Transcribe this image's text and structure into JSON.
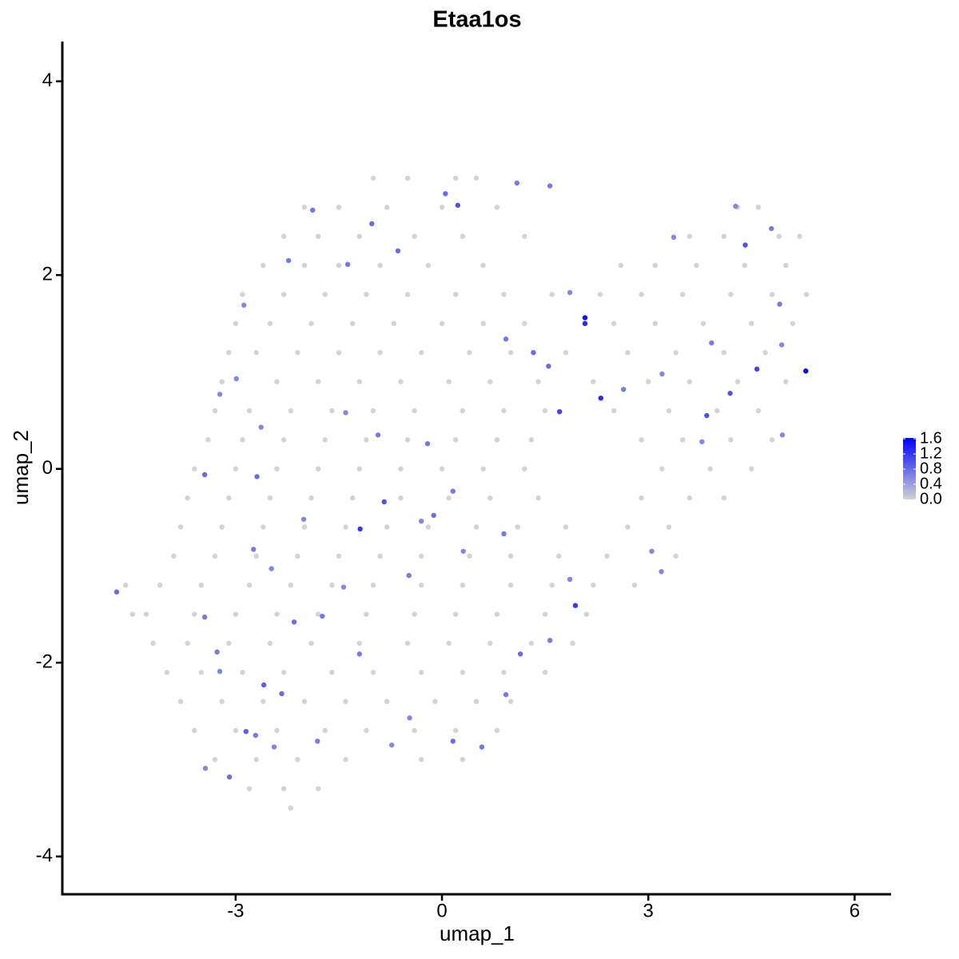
{
  "chart_data": {
    "type": "scatter",
    "title": "Etaa1os",
    "xlabel": "umap_1",
    "ylabel": "umap_2",
    "x": [
      -1.0,
      -0.5,
      0.2,
      0.5,
      -2.0,
      -1.5,
      -0.8,
      0.0,
      0.8,
      4.3,
      4.6,
      -2.3,
      -1.8,
      -1.2,
      -0.4,
      0.3,
      1.2,
      3.6,
      4.1,
      4.9,
      5.2,
      -2.6,
      -2.0,
      -1.5,
      -0.9,
      -0.2,
      0.6,
      2.6,
      3.1,
      3.7,
      4.4,
      5.0,
      -2.9,
      -2.3,
      -1.7,
      -1.1,
      -0.5,
      0.2,
      0.9,
      1.6,
      2.3,
      2.9,
      3.5,
      4.2,
      4.8,
      5.3,
      -3.0,
      -2.5,
      -1.9,
      -1.3,
      -0.7,
      0.0,
      0.6,
      1.2,
      2.5,
      3.1,
      3.8,
      4.5,
      5.1,
      -3.1,
      -2.7,
      -2.1,
      -1.5,
      -0.9,
      -0.3,
      0.4,
      1.0,
      1.8,
      2.7,
      3.4,
      4.1,
      4.7,
      -3.2,
      -2.4,
      -1.8,
      -1.2,
      -0.6,
      0.1,
      0.7,
      1.4,
      2.2,
      3.0,
      3.6,
      4.3,
      5.0,
      -3.3,
      -2.8,
      -2.2,
      -1.6,
      -1.0,
      -0.4,
      0.3,
      0.9,
      1.5,
      2.5,
      3.3,
      4.0,
      4.6,
      -3.4,
      -2.9,
      -2.3,
      -1.7,
      -1.1,
      -0.5,
      0.2,
      0.8,
      1.3,
      2.9,
      3.5,
      4.2,
      4.8,
      -3.6,
      -3.0,
      -2.4,
      -1.8,
      -1.2,
      -0.6,
      0.0,
      0.6,
      1.2,
      3.2,
      3.9,
      4.5,
      -3.7,
      -3.1,
      -2.5,
      -1.9,
      -1.3,
      -0.6,
      0.1,
      0.7,
      1.4,
      2.9,
      3.6,
      4.1,
      -3.8,
      -3.2,
      -2.6,
      -2.0,
      -1.4,
      -0.8,
      -0.2,
      0.5,
      1.1,
      1.8,
      2.7,
      3.3,
      -3.9,
      -3.3,
      -2.7,
      -2.1,
      -1.5,
      -0.9,
      -0.3,
      0.4,
      1.0,
      1.7,
      2.4,
      3.4,
      -4.1,
      -3.5,
      -2.8,
      -2.2,
      -1.6,
      -1.0,
      -0.3,
      0.3,
      1.0,
      1.6,
      2.2,
      2.8,
      -4.3,
      -3.6,
      -3.0,
      -2.4,
      -1.8,
      -1.1,
      -0.4,
      0.2,
      0.8,
      1.5,
      2.1,
      -4.2,
      -3.7,
      -3.1,
      -2.5,
      -1.9,
      -1.2,
      -0.5,
      0.1,
      0.7,
      1.3,
      1.9,
      -4.0,
      -3.5,
      -2.9,
      -2.3,
      -1.6,
      -1.0,
      -0.3,
      0.3,
      0.9,
      1.5,
      -3.8,
      -3.2,
      -2.6,
      -2.0,
      -1.4,
      -0.8,
      -0.1,
      0.5,
      1.0,
      -3.6,
      -3.0,
      -2.4,
      -1.7,
      -1.1,
      -0.4,
      0.2,
      0.8,
      -3.3,
      -2.7,
      -2.1,
      -1.4,
      -0.3,
      0.3,
      -2.8,
      -2.3,
      -1.8,
      -4.6,
      -4.5,
      -2.2,
      5.29,
      2.08,
      2.08,
      2.31,
      1.94,
      -1.19,
      -0.84,
      1.71,
      4.58,
      4.19,
      3.85,
      4.41,
      0.23,
      0.05,
      -0.64,
      -1.02,
      -4.73,
      -3.45,
      -2.69,
      -2.85,
      -3.09,
      0.16,
      0.58,
      1.14,
      1.57,
      0.93,
      -2.59,
      -2.33,
      -2.15,
      -1.74,
      -1.43,
      -0.48,
      -0.21,
      0.16,
      0.9,
      -0.12,
      1.55,
      1.33,
      0.93,
      2.64,
      3.2,
      3.92,
      4.91,
      4.79,
      3.37,
      1.86,
      1.09,
      1.57,
      -1.88,
      -2.23,
      -1.37,
      -2.88,
      -3.23,
      -2.99,
      -2.63,
      -1.4,
      -0.93,
      -2.01,
      -2.74,
      -2.48,
      -3.45,
      -3.27,
      -3.23,
      -2.71,
      -2.44,
      -3.44,
      -1.81,
      -0.73,
      -0.47,
      -1.2,
      -0.3,
      0.31,
      1.86,
      3.05,
      3.19,
      3.78,
      4.95,
      4.94,
      4.27
    ],
    "y": [
      3.0,
      3.0,
      3.0,
      3.0,
      2.7,
      2.7,
      2.7,
      2.7,
      2.7,
      2.7,
      2.7,
      2.4,
      2.4,
      2.4,
      2.4,
      2.4,
      2.4,
      2.4,
      2.4,
      2.4,
      2.4,
      2.1,
      2.1,
      2.1,
      2.1,
      2.1,
      2.1,
      2.1,
      2.1,
      2.1,
      2.1,
      2.1,
      1.8,
      1.8,
      1.8,
      1.8,
      1.8,
      1.8,
      1.8,
      1.8,
      1.8,
      1.8,
      1.8,
      1.8,
      1.8,
      1.8,
      1.5,
      1.5,
      1.5,
      1.5,
      1.5,
      1.5,
      1.5,
      1.5,
      1.5,
      1.5,
      1.5,
      1.5,
      1.5,
      1.2,
      1.2,
      1.2,
      1.2,
      1.2,
      1.2,
      1.2,
      1.2,
      1.2,
      1.2,
      1.2,
      1.2,
      1.2,
      0.9,
      0.9,
      0.9,
      0.9,
      0.9,
      0.9,
      0.9,
      0.9,
      0.9,
      0.9,
      0.9,
      0.9,
      0.9,
      0.6,
      0.6,
      0.6,
      0.6,
      0.6,
      0.6,
      0.6,
      0.6,
      0.6,
      0.6,
      0.6,
      0.6,
      0.6,
      0.3,
      0.3,
      0.3,
      0.3,
      0.3,
      0.3,
      0.3,
      0.3,
      0.3,
      0.3,
      0.3,
      0.3,
      0.3,
      0.0,
      0.0,
      0.0,
      0.0,
      0.0,
      0.0,
      0.0,
      0.0,
      0.0,
      0.0,
      0.0,
      0.0,
      -0.3,
      -0.3,
      -0.3,
      -0.3,
      -0.3,
      -0.3,
      -0.3,
      -0.3,
      -0.3,
      -0.3,
      -0.3,
      -0.3,
      -0.6,
      -0.6,
      -0.6,
      -0.6,
      -0.6,
      -0.6,
      -0.6,
      -0.6,
      -0.6,
      -0.6,
      -0.6,
      -0.6,
      -0.9,
      -0.9,
      -0.9,
      -0.9,
      -0.9,
      -0.9,
      -0.9,
      -0.9,
      -0.9,
      -0.9,
      -0.9,
      -0.9,
      -1.2,
      -1.2,
      -1.2,
      -1.2,
      -1.2,
      -1.2,
      -1.2,
      -1.2,
      -1.2,
      -1.2,
      -1.2,
      -1.2,
      -1.5,
      -1.5,
      -1.5,
      -1.5,
      -1.5,
      -1.5,
      -1.5,
      -1.5,
      -1.5,
      -1.5,
      -1.5,
      -1.8,
      -1.8,
      -1.8,
      -1.8,
      -1.8,
      -1.8,
      -1.8,
      -1.8,
      -1.8,
      -1.8,
      -1.8,
      -2.1,
      -2.1,
      -2.1,
      -2.1,
      -2.1,
      -2.1,
      -2.1,
      -2.1,
      -2.1,
      -2.1,
      -2.4,
      -2.4,
      -2.4,
      -2.4,
      -2.4,
      -2.4,
      -2.4,
      -2.4,
      -2.4,
      -2.7,
      -2.7,
      -2.7,
      -2.7,
      -2.7,
      -2.7,
      -2.7,
      -2.7,
      -3.0,
      -3.0,
      -3.0,
      -3.0,
      -3.0,
      -3.0,
      -3.3,
      -3.3,
      -3.3,
      -1.2,
      -1.5,
      -3.5,
      1.01,
      1.56,
      1.5,
      0.73,
      -1.41,
      -0.62,
      -0.34,
      0.59,
      1.03,
      0.78,
      0.55,
      2.31,
      2.72,
      2.84,
      2.25,
      2.53,
      -1.27,
      -0.06,
      -0.08,
      -2.71,
      -3.18,
      -2.81,
      -2.87,
      -1.91,
      -1.77,
      -2.33,
      -2.23,
      -2.32,
      -1.58,
      -1.52,
      -1.22,
      -1.1,
      0.26,
      -0.23,
      -0.67,
      -0.48,
      1.06,
      1.2,
      1.34,
      0.82,
      0.98,
      1.3,
      1.7,
      2.48,
      2.39,
      1.82,
      2.95,
      2.92,
      2.67,
      2.15,
      2.11,
      1.69,
      0.77,
      0.93,
      0.43,
      0.58,
      0.35,
      -0.52,
      -0.83,
      -1.03,
      -1.53,
      -1.89,
      -2.09,
      -2.75,
      -2.87,
      -3.09,
      -2.81,
      -2.85,
      -2.57,
      -1.91,
      -0.54,
      -0.85,
      -1.14,
      -0.85,
      -1.06,
      0.28,
      0.35,
      1.28,
      2.71
    ],
    "values": [
      0,
      0,
      0,
      0,
      0,
      0,
      0,
      0,
      0,
      0,
      0,
      0,
      0,
      0,
      0,
      0,
      0,
      0,
      0,
      0,
      0,
      0,
      0,
      0,
      0,
      0,
      0,
      0,
      0,
      0,
      0,
      0,
      0,
      0,
      0,
      0,
      0,
      0,
      0,
      0,
      0,
      0,
      0,
      0,
      0,
      0,
      0,
      0,
      0,
      0,
      0,
      0,
      0,
      0,
      0,
      0,
      0,
      0,
      0,
      0,
      0,
      0,
      0,
      0,
      0,
      0,
      0,
      0,
      0,
      0,
      0,
      0,
      0,
      0,
      0,
      0,
      0,
      0,
      0,
      0,
      0,
      0,
      0,
      0,
      0,
      0,
      0,
      0,
      0,
      0,
      0,
      0,
      0,
      0,
      0,
      0,
      0,
      0,
      0,
      0,
      0,
      0,
      0,
      0,
      0,
      0,
      0,
      0,
      0,
      0,
      0,
      0,
      0,
      0,
      0,
      0,
      0,
      0,
      0,
      0,
      0,
      0,
      0,
      0,
      0,
      0,
      0,
      0,
      0,
      0,
      0,
      0,
      0,
      0,
      0,
      0,
      0,
      0,
      0,
      0,
      0,
      0,
      0,
      0,
      0,
      0,
      0,
      0,
      0,
      0,
      0,
      0,
      0,
      0,
      0,
      0,
      0,
      0,
      0,
      0,
      0,
      0,
      0,
      0,
      0,
      0,
      0,
      0,
      0,
      0,
      0,
      0,
      0,
      0,
      0,
      0,
      0,
      0,
      0,
      0,
      0,
      0,
      0,
      0,
      0,
      0,
      0,
      0,
      0,
      0,
      0,
      0,
      0,
      0,
      0,
      0,
      0,
      0,
      0,
      0,
      0,
      0,
      0,
      0,
      0,
      0,
      0,
      0,
      0,
      0,
      0,
      0,
      0,
      0,
      0,
      0,
      0,
      0,
      0,
      0,
      0,
      0,
      0,
      0,
      0,
      0,
      0,
      0,
      0,
      0,
      0,
      0,
      1.6,
      1.5,
      1.3,
      1.3,
      1.2,
      1.2,
      1.0,
      1.1,
      1.1,
      1.0,
      1.0,
      1.0,
      1.0,
      0.8,
      0.8,
      0.8,
      0.8,
      0.8,
      0.8,
      0.9,
      0.8,
      0.8,
      0.7,
      0.8,
      0.7,
      0.7,
      0.9,
      0.8,
      0.8,
      0.7,
      0.6,
      0.7,
      0.7,
      0.7,
      0.7,
      0.8,
      0.8,
      0.8,
      0.7,
      0.7,
      0.6,
      0.7,
      0.7,
      0.7,
      0.6,
      0.6,
      0.7,
      0.7,
      0.7,
      0.7,
      0.7,
      0.6,
      0.6,
      0.6,
      0.6,
      0.6,
      0.7,
      0.6,
      0.7,
      0.6,
      0.7,
      0.7,
      0.6,
      0.7,
      0.6,
      0.6,
      0.7,
      0.6,
      0.6,
      0.7,
      0.6,
      0.6,
      0.6,
      0.6,
      0.6,
      0.6,
      0.6,
      0.6,
      0.6
    ],
    "color_low": "#d3d3d3",
    "color_high": "#0000ff",
    "xlim": [
      -5.52,
      6.53
    ],
    "ylim": [
      -4.39,
      4.41
    ],
    "xticks": [
      -3,
      0,
      3,
      6
    ],
    "yticks": [
      -4,
      -2,
      0,
      2,
      4
    ],
    "colorbar_lim": [
      0,
      1.62
    ],
    "colorbar_ticks": [
      {
        "value": 0,
        "label": "0.0"
      },
      {
        "value": 0.4,
        "label": "0.4"
      },
      {
        "value": 0.8,
        "label": "0.8"
      },
      {
        "value": 1.2,
        "label": "1.2"
      },
      {
        "value": 1.6,
        "label": "1.6"
      }
    ],
    "grid": false
  }
}
